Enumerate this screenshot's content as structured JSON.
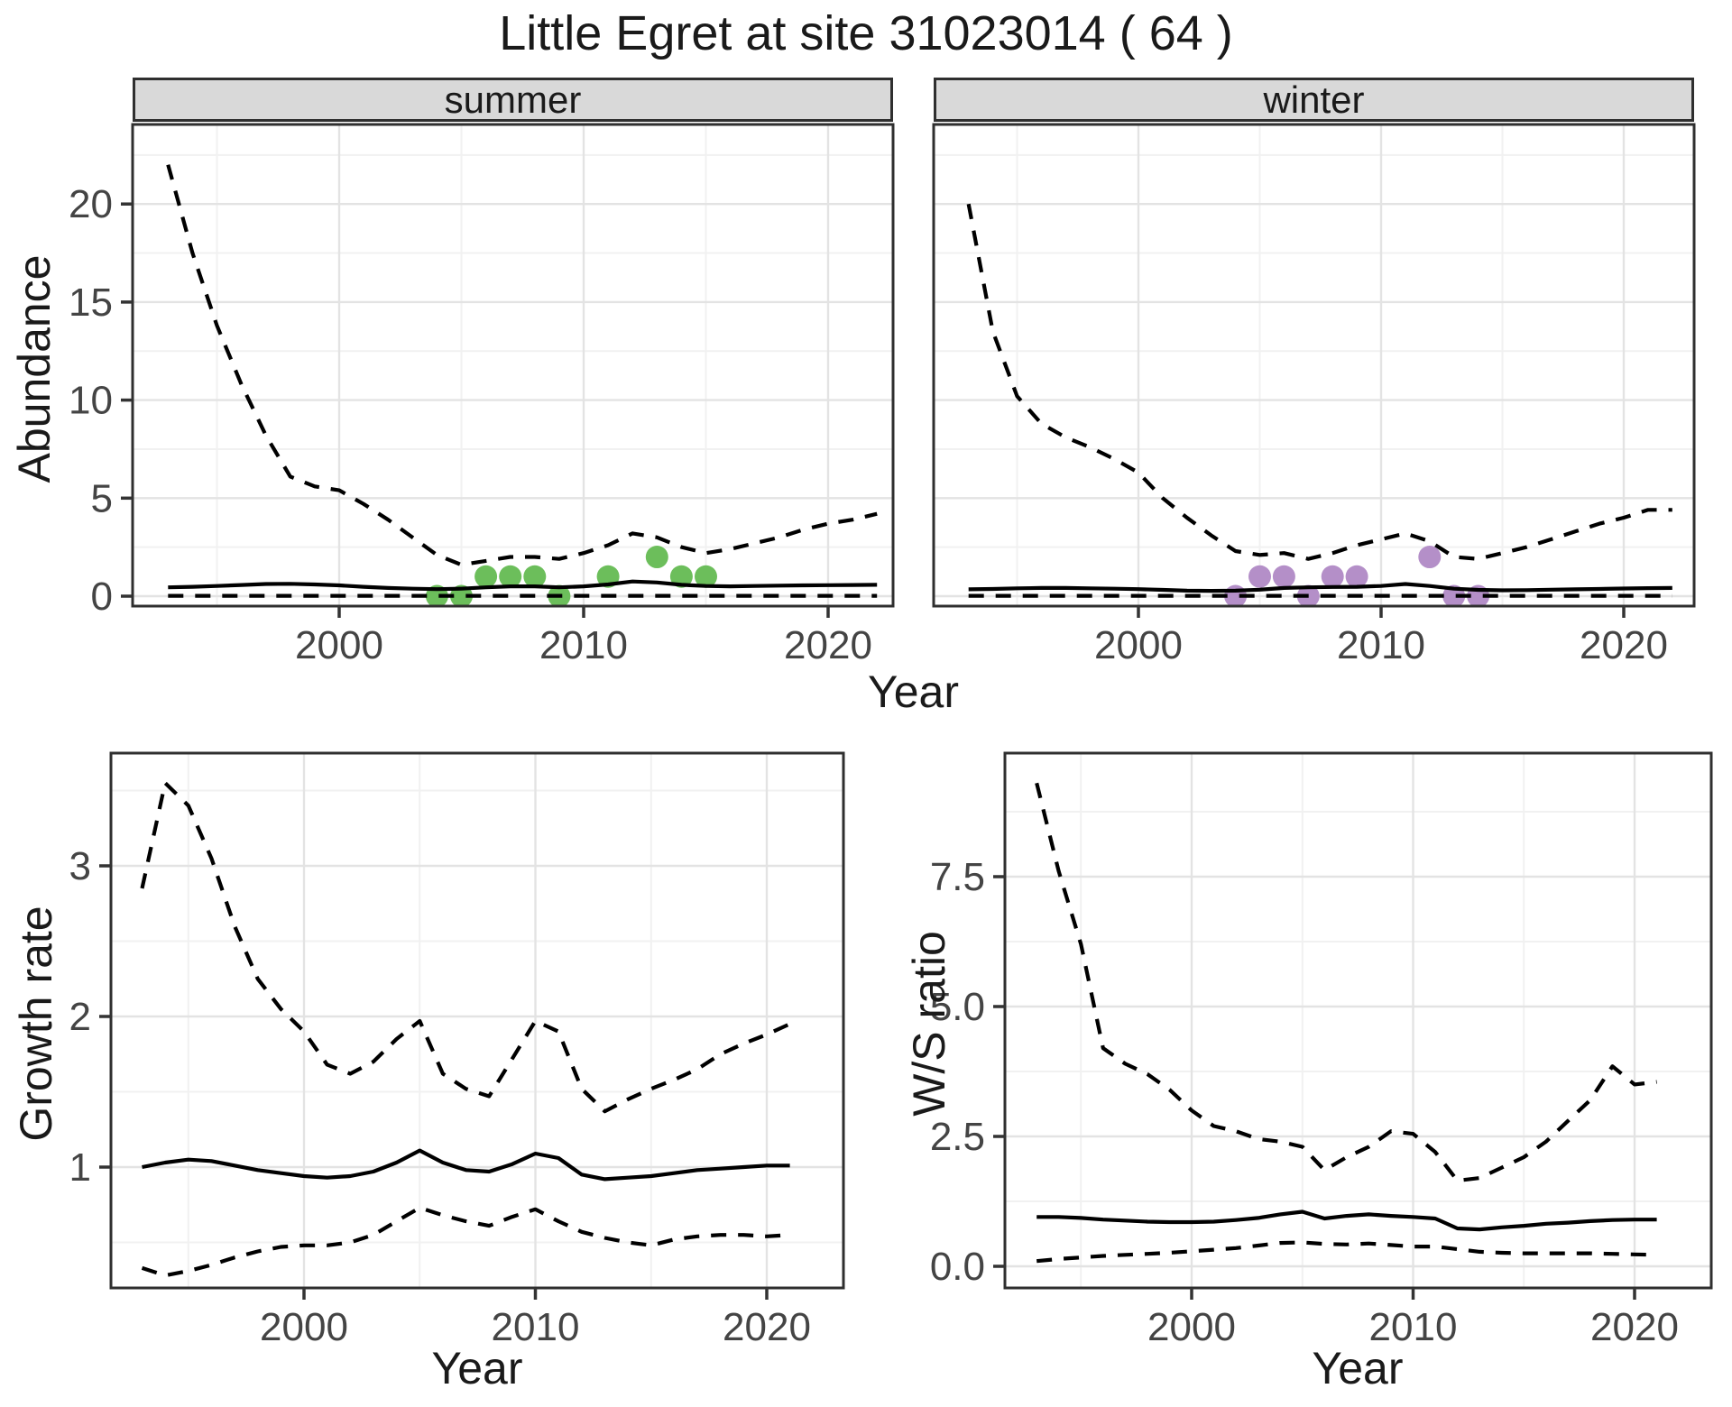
{
  "title": "Little Egret at site 31023014 ( 64 )",
  "axes": {
    "x_label": "Year",
    "abundance_label": "Abundance",
    "growth_label": "Growth rate",
    "ws_label": "W/S ratio"
  },
  "facets": [
    {
      "label": "summer"
    },
    {
      "label": "winter"
    }
  ],
  "colors": {
    "summer_point": "#6cbe5b",
    "winter_point": "#b48fc8",
    "line": "#000000",
    "strip_bg": "#d9d9d9",
    "panel_border": "#2f2f2f",
    "grid_major": "#e3e3e3",
    "grid_minor": "#f1f1f1",
    "tick_text": "#444444"
  },
  "chart_data": [
    {
      "id": "abundance_summer",
      "type": "line",
      "facet": "summer",
      "xlabel": "Year",
      "ylabel": "Abundance",
      "xlim": [
        1991.5,
        2022.7
      ],
      "ylim": [
        -0.5,
        24.1
      ],
      "grid": true,
      "x_ticks": [
        {
          "v": 2000,
          "l": "2000"
        },
        {
          "v": 2010,
          "l": "2010"
        },
        {
          "v": 2020,
          "l": "2020"
        }
      ],
      "x_minor": [
        1995,
        2005,
        2015
      ],
      "y_ticks": [
        {
          "v": 0,
          "l": "0"
        },
        {
          "v": 5,
          "l": "5"
        },
        {
          "v": 10,
          "l": "10"
        },
        {
          "v": 15,
          "l": "15"
        },
        {
          "v": 20,
          "l": "20"
        }
      ],
      "y_minor": [
        2.5,
        7.5,
        12.5,
        17.5,
        22.5
      ],
      "years": [
        1993,
        1994,
        1995,
        1996,
        1997,
        1998,
        1999,
        2000,
        2001,
        2002,
        2003,
        2004,
        2005,
        2006,
        2007,
        2008,
        2009,
        2010,
        2011,
        2012,
        2013,
        2014,
        2015,
        2016,
        2017,
        2018,
        2019,
        2020,
        2021,
        2022
      ],
      "series": [
        {
          "name": "upper_95ci",
          "style": "dashed",
          "values": [
            22,
            17.5,
            13.8,
            10.8,
            8.2,
            6.1,
            5.6,
            5.4,
            4.7,
            3.9,
            3.0,
            2.1,
            1.6,
            1.8,
            2.0,
            2.0,
            1.9,
            2.2,
            2.6,
            3.2,
            3.0,
            2.5,
            2.2,
            2.4,
            2.7,
            3.0,
            3.4,
            3.7,
            3.9,
            4.2
          ]
        },
        {
          "name": "median",
          "style": "solid",
          "values": [
            0.45,
            0.48,
            0.52,
            0.57,
            0.62,
            0.63,
            0.6,
            0.55,
            0.48,
            0.42,
            0.38,
            0.36,
            0.38,
            0.45,
            0.5,
            0.5,
            0.45,
            0.5,
            0.6,
            0.75,
            0.7,
            0.58,
            0.52,
            0.5,
            0.52,
            0.54,
            0.55,
            0.56,
            0.57,
            0.58
          ]
        },
        {
          "name": "lower_95ci",
          "style": "dashed",
          "values": [
            0.02,
            0.02,
            0.02,
            0.02,
            0.02,
            0.02,
            0.02,
            0.02,
            0.02,
            0.02,
            0.02,
            0.02,
            0.02,
            0.02,
            0.02,
            0.02,
            0.02,
            0.02,
            0.02,
            0.02,
            0.02,
            0.02,
            0.02,
            0.02,
            0.02,
            0.02,
            0.02,
            0.02,
            0.02,
            0.02
          ]
        }
      ],
      "points": {
        "name": "observed-counts",
        "color": "#6cbe5b",
        "data": [
          [
            2004,
            0
          ],
          [
            2005,
            0
          ],
          [
            2006,
            1
          ],
          [
            2007,
            1
          ],
          [
            2008,
            1
          ],
          [
            2009,
            0
          ],
          [
            2011,
            1
          ],
          [
            2013,
            2
          ],
          [
            2014,
            1
          ],
          [
            2015,
            1
          ]
        ]
      }
    },
    {
      "id": "abundance_winter",
      "type": "line",
      "facet": "winter",
      "xlabel": "Year",
      "ylabel": "Abundance",
      "xlim": [
        1991.5,
        2022.9
      ],
      "ylim": [
        -0.5,
        24.1
      ],
      "grid": true,
      "x_ticks": [
        {
          "v": 2000,
          "l": "2000"
        },
        {
          "v": 2010,
          "l": "2010"
        },
        {
          "v": 2020,
          "l": "2020"
        }
      ],
      "x_minor": [
        1995,
        2005,
        2015
      ],
      "y_ticks": [
        {
          "v": 0,
          "l": "0"
        },
        {
          "v": 5,
          "l": "5"
        },
        {
          "v": 10,
          "l": "10"
        },
        {
          "v": 15,
          "l": "15"
        },
        {
          "v": 20,
          "l": "20"
        }
      ],
      "y_minor": [
        2.5,
        7.5,
        12.5,
        17.5,
        22.5
      ],
      "years": [
        1993,
        1994,
        1995,
        1996,
        1997,
        1998,
        1999,
        2000,
        2001,
        2002,
        2003,
        2004,
        2005,
        2006,
        2007,
        2008,
        2009,
        2010,
        2011,
        2012,
        2013,
        2014,
        2015,
        2016,
        2017,
        2018,
        2019,
        2020,
        2021,
        2022
      ],
      "series": [
        {
          "name": "upper_95ci",
          "style": "dashed",
          "values": [
            20,
            13.5,
            10.2,
            8.8,
            8.1,
            7.6,
            7.0,
            6.3,
            5.0,
            4.0,
            3.1,
            2.3,
            2.1,
            2.2,
            1.9,
            2.2,
            2.6,
            2.9,
            3.2,
            2.8,
            2.0,
            1.9,
            2.2,
            2.5,
            2.9,
            3.3,
            3.7,
            4.0,
            4.4,
            4.4
          ]
        },
        {
          "name": "median",
          "style": "solid",
          "values": [
            0.35,
            0.37,
            0.4,
            0.42,
            0.42,
            0.4,
            0.38,
            0.36,
            0.32,
            0.28,
            0.27,
            0.28,
            0.33,
            0.42,
            0.45,
            0.47,
            0.48,
            0.52,
            0.62,
            0.52,
            0.38,
            0.32,
            0.3,
            0.31,
            0.33,
            0.35,
            0.37,
            0.39,
            0.41,
            0.42
          ]
        },
        {
          "name": "lower_95ci",
          "style": "dashed",
          "values": [
            0.02,
            0.02,
            0.02,
            0.02,
            0.02,
            0.02,
            0.02,
            0.02,
            0.02,
            0.02,
            0.02,
            0.02,
            0.02,
            0.02,
            0.02,
            0.02,
            0.02,
            0.02,
            0.02,
            0.02,
            0.02,
            0.02,
            0.02,
            0.02,
            0.02,
            0.02,
            0.02,
            0.02,
            0.02,
            0.02
          ]
        }
      ],
      "points": {
        "name": "observed-counts",
        "color": "#b48fc8",
        "data": [
          [
            2004,
            0
          ],
          [
            2005,
            1
          ],
          [
            2006,
            1
          ],
          [
            2007,
            0
          ],
          [
            2008,
            1
          ],
          [
            2009,
            1
          ],
          [
            2012,
            2
          ],
          [
            2013,
            0
          ],
          [
            2014,
            0
          ]
        ]
      }
    },
    {
      "id": "growth_rate",
      "type": "line",
      "xlabel": "Year",
      "ylabel": "Growth rate",
      "xlim": [
        1991.7,
        2023.3
      ],
      "ylim": [
        0.2,
        3.75
      ],
      "grid": true,
      "x_ticks": [
        {
          "v": 2000,
          "l": "2000"
        },
        {
          "v": 2010,
          "l": "2010"
        },
        {
          "v": 2020,
          "l": "2020"
        }
      ],
      "x_minor": [
        1995,
        2005,
        2015
      ],
      "y_ticks": [
        {
          "v": 1,
          "l": "1"
        },
        {
          "v": 2,
          "l": "2"
        },
        {
          "v": 3,
          "l": "3"
        }
      ],
      "y_minor": [
        0.5,
        1.5,
        2.5,
        3.5
      ],
      "years": [
        1993,
        1994,
        1995,
        1996,
        1997,
        1998,
        1999,
        2000,
        2001,
        2002,
        2003,
        2004,
        2005,
        2006,
        2007,
        2008,
        2009,
        2010,
        2011,
        2012,
        2013,
        2014,
        2015,
        2016,
        2017,
        2018,
        2019,
        2020,
        2021
      ],
      "series": [
        {
          "name": "upper_95ci",
          "style": "dashed",
          "values": [
            2.85,
            3.55,
            3.4,
            3.05,
            2.6,
            2.25,
            2.05,
            1.9,
            1.68,
            1.62,
            1.7,
            1.85,
            1.97,
            1.62,
            1.52,
            1.47,
            1.72,
            1.97,
            1.9,
            1.52,
            1.37,
            1.45,
            1.52,
            1.58,
            1.65,
            1.75,
            1.82,
            1.88,
            1.95
          ]
        },
        {
          "name": "median",
          "style": "solid",
          "values": [
            1.0,
            1.03,
            1.05,
            1.04,
            1.01,
            0.98,
            0.96,
            0.94,
            0.93,
            0.94,
            0.97,
            1.03,
            1.11,
            1.03,
            0.98,
            0.97,
            1.02,
            1.09,
            1.06,
            0.95,
            0.92,
            0.93,
            0.94,
            0.96,
            0.98,
            0.99,
            1.0,
            1.01,
            1.01
          ]
        },
        {
          "name": "lower_95ci",
          "style": "dashed",
          "values": [
            0.33,
            0.28,
            0.31,
            0.35,
            0.4,
            0.44,
            0.47,
            0.48,
            0.48,
            0.5,
            0.55,
            0.64,
            0.73,
            0.68,
            0.64,
            0.61,
            0.67,
            0.72,
            0.64,
            0.57,
            0.53,
            0.5,
            0.48,
            0.52,
            0.54,
            0.55,
            0.55,
            0.54,
            0.55
          ]
        }
      ]
    },
    {
      "id": "ws_ratio",
      "type": "line",
      "xlabel": "Year",
      "ylabel": "W/S ratio",
      "xlim": [
        1991.6,
        2023.5
      ],
      "ylim": [
        -0.42,
        9.88
      ],
      "grid": true,
      "x_ticks": [
        {
          "v": 2000,
          "l": "2000"
        },
        {
          "v": 2010,
          "l": "2010"
        },
        {
          "v": 2020,
          "l": "2020"
        }
      ],
      "x_minor": [
        1995,
        2005,
        2015
      ],
      "y_ticks": [
        {
          "v": 0,
          "l": "0.0"
        },
        {
          "v": 2.5,
          "l": "2.5"
        },
        {
          "v": 5,
          "l": "5.0"
        },
        {
          "v": 7.5,
          "l": "7.5"
        }
      ],
      "y_minor": [
        1.25,
        3.75,
        6.25,
        8.75
      ],
      "years": [
        1993,
        1994,
        1995,
        1996,
        1997,
        1998,
        1999,
        2000,
        2001,
        2002,
        2003,
        2004,
        2005,
        2006,
        2007,
        2008,
        2009,
        2010,
        2011,
        2012,
        2013,
        2014,
        2015,
        2016,
        2017,
        2018,
        2019,
        2020,
        2021
      ],
      "series": [
        {
          "name": "upper_95ci",
          "style": "dashed",
          "values": [
            9.3,
            7.6,
            6.2,
            4.2,
            3.9,
            3.7,
            3.4,
            3.0,
            2.7,
            2.6,
            2.45,
            2.4,
            2.3,
            1.85,
            2.1,
            2.3,
            2.6,
            2.55,
            2.2,
            1.65,
            1.7,
            1.9,
            2.1,
            2.4,
            2.8,
            3.2,
            3.85,
            3.5,
            3.55
          ]
        },
        {
          "name": "median",
          "style": "solid",
          "values": [
            0.95,
            0.95,
            0.93,
            0.9,
            0.88,
            0.86,
            0.85,
            0.85,
            0.86,
            0.89,
            0.93,
            1.0,
            1.05,
            0.92,
            0.97,
            1.0,
            0.97,
            0.95,
            0.92,
            0.73,
            0.71,
            0.75,
            0.78,
            0.82,
            0.84,
            0.87,
            0.89,
            0.9,
            0.9
          ]
        },
        {
          "name": "lower_95ci",
          "style": "dashed",
          "values": [
            0.1,
            0.14,
            0.17,
            0.2,
            0.22,
            0.24,
            0.26,
            0.29,
            0.32,
            0.35,
            0.4,
            0.45,
            0.46,
            0.43,
            0.42,
            0.44,
            0.41,
            0.38,
            0.38,
            0.33,
            0.28,
            0.26,
            0.25,
            0.25,
            0.25,
            0.25,
            0.24,
            0.23,
            0.22
          ]
        }
      ]
    }
  ]
}
